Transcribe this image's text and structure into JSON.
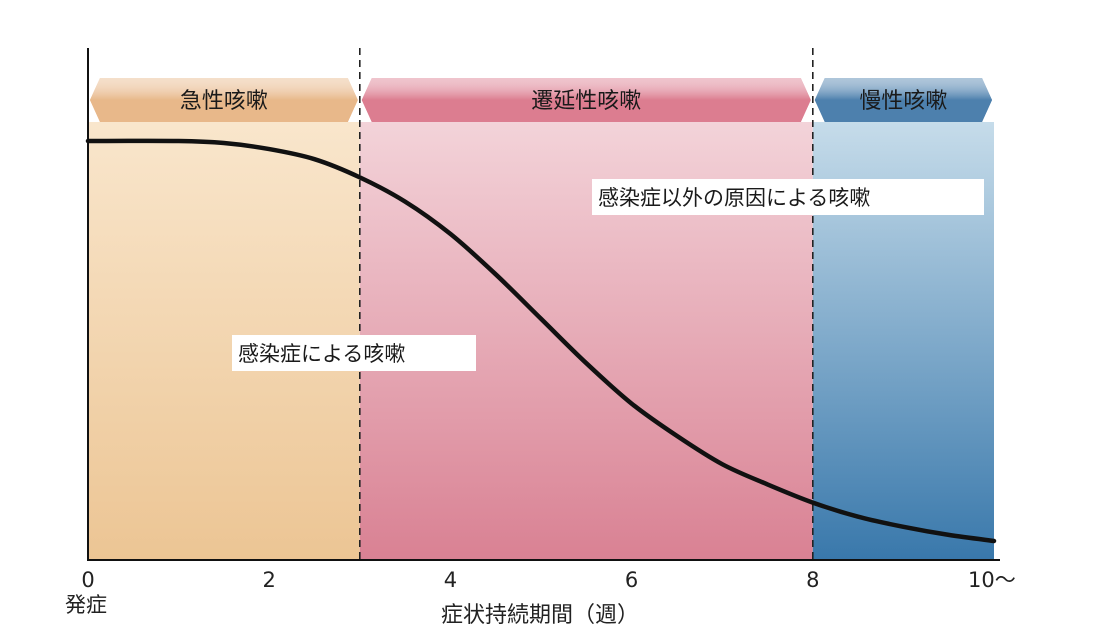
{
  "chart_data": {
    "type": "line",
    "title": "",
    "xlabel": "症状持続期間（週）",
    "ylabel": "",
    "xlim": [
      0,
      10
    ],
    "x_ticks": [
      {
        "value": 0,
        "label": "0"
      },
      {
        "value": 2,
        "label": "2"
      },
      {
        "value": 4,
        "label": "4"
      },
      {
        "value": 6,
        "label": "6"
      },
      {
        "value": 8,
        "label": "8"
      },
      {
        "value": 10,
        "label": "10〜"
      }
    ],
    "x_zero_sublabel": "発症",
    "phases": [
      {
        "name": "急性咳嗽",
        "from": 0,
        "to": 3,
        "color_top": "#f9e6cc",
        "color_bottom": "#ecc594",
        "banner_color": "#e8b88a"
      },
      {
        "name": "遷延性咳嗽",
        "from": 3,
        "to": 8,
        "color_top": "#f3d3d9",
        "color_bottom": "#d98193",
        "banner_color": "#dc7d90"
      },
      {
        "name": "慢性咳嗽",
        "from": 8,
        "to": 10,
        "color_top": "#c6dcea",
        "color_bottom": "#3978ab",
        "banner_color": "#4d80ad"
      }
    ],
    "series": [
      {
        "values_label": "",
        "x": [
          0,
          1,
          1.5,
          2,
          2.5,
          3,
          3.5,
          4,
          4.5,
          5,
          5.5,
          6,
          6.5,
          7,
          7.5,
          8,
          8.5,
          9,
          9.5,
          10
        ],
        "y": [
          1.0,
          1.0,
          0.995,
          0.98,
          0.955,
          0.91,
          0.85,
          0.77,
          0.67,
          0.56,
          0.45,
          0.35,
          0.27,
          0.2,
          0.15,
          0.105,
          0.07,
          0.045,
          0.025,
          0.01
        ]
      }
    ],
    "annotations": [
      {
        "text": "感染症による咳嗽"
      },
      {
        "text": "感染症以外の原因による咳嗽"
      }
    ],
    "dividers_at": [
      3,
      8
    ],
    "line_color": "#111111"
  }
}
